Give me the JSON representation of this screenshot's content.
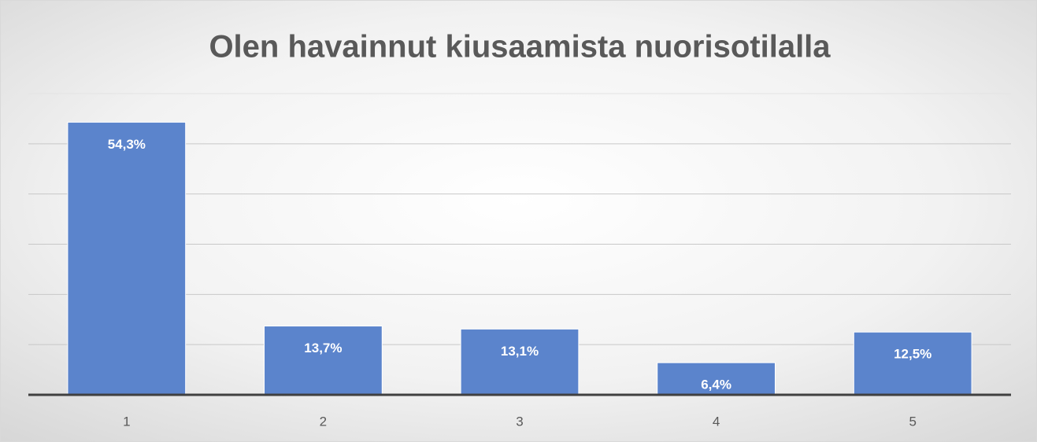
{
  "chart_data": {
    "type": "bar",
    "title": "Olen havainnut kiusaamista nuorisotilalla",
    "categories": [
      "1",
      "2",
      "3",
      "4",
      "5"
    ],
    "values": [
      54.3,
      13.7,
      13.1,
      6.4,
      12.5
    ],
    "value_labels": [
      "54,3%",
      "13,7%",
      "13,1%",
      "6,4%",
      "12,5%"
    ],
    "color": "#5b84cc",
    "ylim": [
      0,
      60
    ],
    "yticks": [
      0,
      10,
      20,
      30,
      40,
      50,
      60
    ],
    "grid": true
  }
}
